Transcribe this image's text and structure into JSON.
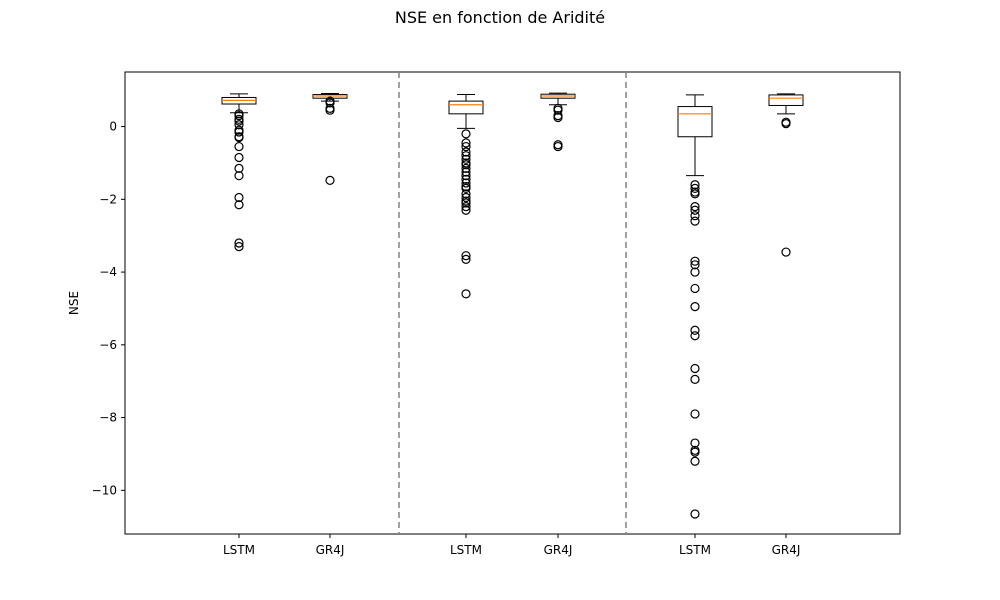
{
  "chart_data": {
    "type": "boxplot",
    "title": "NSE en fonction de Aridité",
    "ylabel": "NSE",
    "xlabel": "",
    "ylim": [
      -11.2,
      1.5
    ],
    "yticks": [
      0,
      -2,
      -4,
      -6,
      -8,
      -10
    ],
    "ytick_labels": [
      "0",
      "−2",
      "−4",
      "−6",
      "−8",
      "−10"
    ],
    "grid": false,
    "group_separators": "dashed vertical lines between groups",
    "groups": [
      {
        "boxes": [
          {
            "label": "LSTM",
            "q1": 0.62,
            "median": 0.72,
            "q3": 0.8,
            "whisker_low": 0.38,
            "whisker_high": 0.9,
            "outliers": [
              0.35,
              0.3,
              0.2,
              0.15,
              0.05,
              -0.1,
              -0.15,
              -0.28,
              -0.3,
              -0.55,
              -0.85,
              -1.15,
              -1.35,
              -1.95,
              -2.15,
              -3.2,
              -3.3
            ]
          },
          {
            "label": "GR4J",
            "q1": 0.78,
            "median": 0.84,
            "q3": 0.88,
            "whisker_low": 0.7,
            "whisker_high": 0.91,
            "outliers": [
              0.7,
              0.65,
              0.5,
              0.45,
              -1.48
            ]
          }
        ]
      },
      {
        "boxes": [
          {
            "label": "LSTM",
            "q1": 0.35,
            "median": 0.6,
            "q3": 0.7,
            "whisker_low": -0.05,
            "whisker_high": 0.88,
            "outliers": [
              -0.2,
              -0.45,
              -0.55,
              -0.7,
              -0.8,
              -0.9,
              -1.0,
              -1.05,
              -1.15,
              -1.25,
              -1.35,
              -1.45,
              -1.55,
              -1.65,
              -1.7,
              -1.85,
              -1.95,
              -2.05,
              -2.1,
              -2.2,
              -2.3,
              -3.55,
              -3.65,
              -4.6
            ]
          },
          {
            "label": "GR4J",
            "q1": 0.78,
            "median": 0.84,
            "q3": 0.89,
            "whisker_low": 0.6,
            "whisker_high": 0.92,
            "outliers": [
              0.5,
              0.45,
              0.3,
              0.25,
              -0.5,
              -0.55
            ]
          }
        ]
      },
      {
        "boxes": [
          {
            "label": "LSTM",
            "q1": -0.28,
            "median": 0.35,
            "q3": 0.55,
            "whisker_low": -1.35,
            "whisker_high": 0.87,
            "outliers": [
              -1.6,
              -1.7,
              -1.8,
              -1.85,
              -2.2,
              -2.3,
              -2.45,
              -2.6,
              -3.7,
              -3.8,
              -4.0,
              -4.45,
              -4.95,
              -5.6,
              -5.75,
              -6.65,
              -6.95,
              -7.9,
              -8.7,
              -8.9,
              -8.95,
              -9.2,
              -10.65
            ]
          },
          {
            "label": "GR4J",
            "q1": 0.58,
            "median": 0.78,
            "q3": 0.87,
            "whisker_low": 0.35,
            "whisker_high": 0.9,
            "outliers": [
              0.12,
              0.08,
              -3.45
            ]
          }
        ]
      }
    ],
    "colors": {
      "box": "#000000",
      "median": "#ff7f0e",
      "separator": "#808080",
      "outlier": "#000000"
    }
  }
}
